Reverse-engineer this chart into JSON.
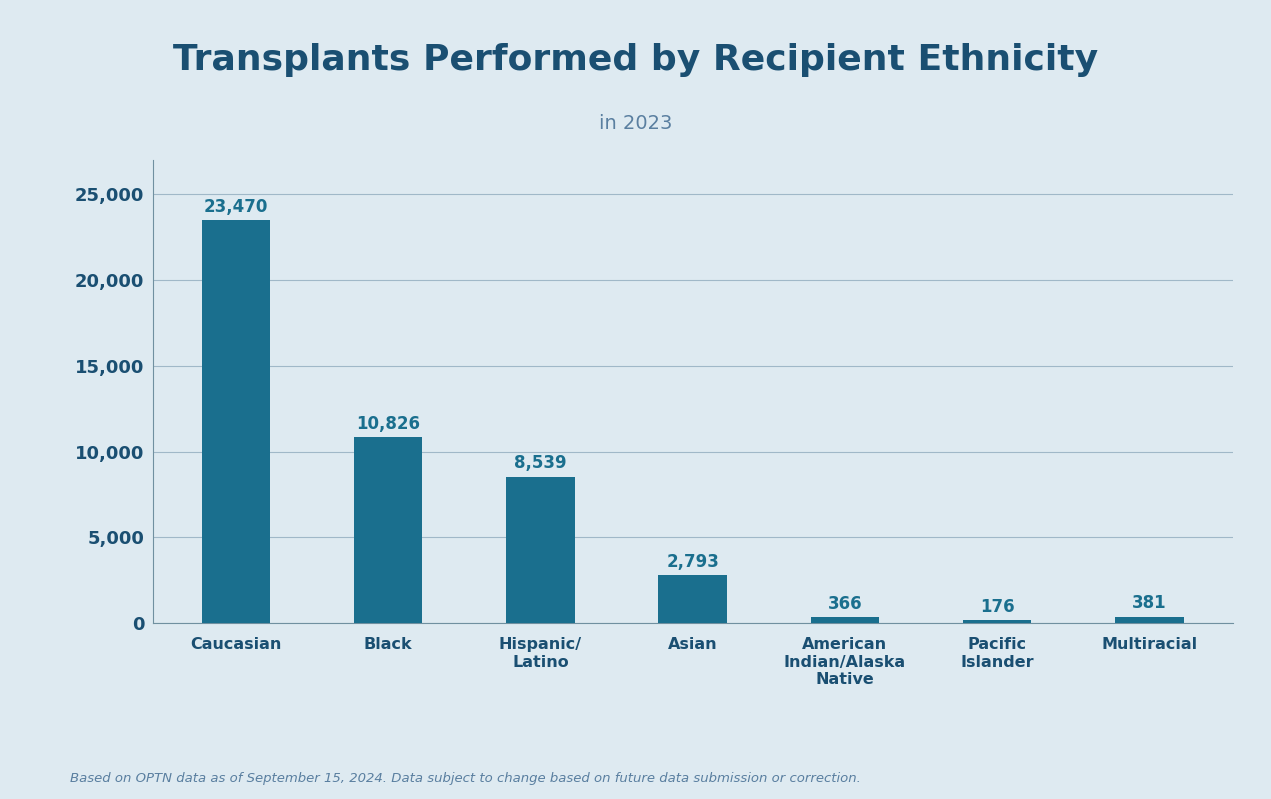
{
  "title": "Transplants Performed by Recipient Ethnicity",
  "subtitle": "in 2023",
  "categories": [
    "Caucasian",
    "Black",
    "Hispanic/\nLatino",
    "Asian",
    "American\nIndian/Alaska\nNative",
    "Pacific\nIslander",
    "Multiracial"
  ],
  "values": [
    23470,
    10826,
    8539,
    2793,
    366,
    176,
    381
  ],
  "value_labels": [
    "23,470",
    "10,826",
    "8,539",
    "2,793",
    "366",
    "176",
    "381"
  ],
  "bar_color": "#1a6f8e",
  "background_color": "#deeaf1",
  "title_color": "#1a4f72",
  "subtitle_color": "#5a7fa0",
  "label_color": "#1a6f8e",
  "tick_label_color": "#1a4f72",
  "yticks": [
    0,
    5000,
    10000,
    15000,
    20000,
    25000
  ],
  "ytick_labels": [
    "0",
    "5,000",
    "10,000",
    "15,000",
    "20,000",
    "25,000"
  ],
  "ylim": [
    0,
    27000
  ],
  "grid_color": "#a0b8c8",
  "spine_color": "#7090a0",
  "footnote": "Based on OPTN data as of September 15, 2024. Data subject to change based on future data submission or correction.",
  "footnote_color": "#5a7fa0"
}
